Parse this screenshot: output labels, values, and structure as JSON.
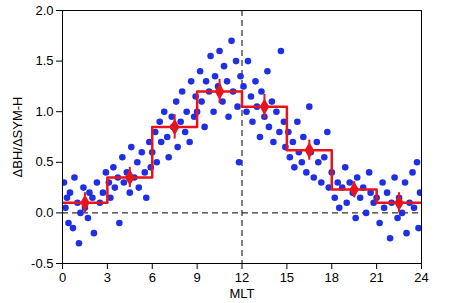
{
  "chart_data": {
    "type": "scatter",
    "x_label": "MLT",
    "y_label": "ΔBH/ΔSYM-H",
    "xlim": [
      0,
      24
    ],
    "xticks": [
      0,
      3,
      6,
      9,
      12,
      15,
      18,
      21,
      24
    ],
    "ylim": [
      -0.5,
      2.0
    ],
    "yticks": [
      -0.5,
      {
        "value": 0,
        "label": "0.0"
      },
      0.5,
      {
        "value": 1,
        "label": "1.0"
      },
      1.5,
      {
        "value": 2,
        "label": "2.0"
      }
    ],
    "grid": false,
    "reference_lines": [
      {
        "axis": "x",
        "value": 12,
        "line_style": "dashed"
      },
      {
        "axis": "y",
        "value": 0,
        "line_style": "dashed"
      }
    ],
    "series": [
      {
        "type": "scatter",
        "color": "#1f2fe6",
        "marker": "circle",
        "x": [
          0.1,
          0.2,
          0.3,
          0.4,
          0.5,
          0.7,
          0.8,
          1.0,
          1.1,
          1.2,
          1.4,
          1.5,
          1.7,
          1.8,
          2.0,
          2.1,
          2.3,
          2.5,
          2.7,
          2.9,
          3.1,
          3.2,
          3.4,
          3.5,
          3.7,
          3.8,
          4.0,
          4.1,
          4.3,
          4.5,
          4.6,
          4.8,
          5.0,
          5.1,
          5.3,
          5.5,
          5.6,
          5.8,
          5.9,
          6.0,
          6.2,
          6.3,
          6.5,
          6.6,
          6.8,
          7.0,
          7.1,
          7.3,
          7.4,
          7.6,
          7.7,
          7.9,
          8.0,
          8.2,
          8.3,
          8.5,
          8.6,
          8.8,
          8.9,
          9.0,
          9.2,
          9.3,
          9.5,
          9.6,
          9.8,
          9.9,
          10.1,
          10.2,
          10.4,
          10.5,
          10.7,
          10.8,
          11.0,
          11.1,
          11.3,
          11.4,
          11.6,
          11.7,
          11.8,
          11.9,
          12.1,
          12.3,
          12.4,
          12.6,
          12.7,
          12.9,
          13.0,
          13.2,
          13.3,
          13.5,
          13.7,
          13.8,
          14.0,
          14.1,
          14.3,
          14.5,
          14.6,
          14.8,
          14.9,
          15.1,
          15.2,
          15.4,
          15.5,
          15.7,
          15.8,
          16.0,
          16.1,
          16.3,
          16.5,
          16.6,
          16.8,
          17.0,
          17.1,
          17.3,
          17.5,
          17.7,
          17.8,
          18.0,
          18.2,
          18.4,
          18.5,
          18.7,
          18.9,
          19.0,
          19.2,
          19.4,
          19.6,
          19.7,
          19.9,
          20.1,
          20.3,
          20.5,
          20.6,
          20.8,
          21.0,
          21.2,
          21.4,
          21.5,
          21.7,
          21.9,
          22.0,
          22.2,
          22.4,
          22.5,
          22.7,
          22.9,
          23.0,
          23.2,
          23.4,
          23.5,
          23.7,
          23.8,
          23.9
        ],
        "values": [
          0.3,
          0.05,
          0.15,
          -0.1,
          0.2,
          -0.15,
          0.35,
          0.1,
          -0.3,
          0,
          0.25,
          0.05,
          -0.05,
          0.2,
          0.15,
          -0.2,
          0.3,
          0.1,
          0.2,
          0.4,
          0.3,
          0.15,
          0.45,
          0.25,
          0.35,
          -0.1,
          0.55,
          0.3,
          0.4,
          0.2,
          0.65,
          0.35,
          0.5,
          0.25,
          0.6,
          0.4,
          0.15,
          0.7,
          0.45,
          0.6,
          0.8,
          0.5,
          0.9,
          0.7,
          1.0,
          0.75,
          0.55,
          0.95,
          0.85,
          1.1,
          0.65,
          0.9,
          1.2,
          0.8,
          1.0,
          0.7,
          1.3,
          0.95,
          1.15,
          1.0,
          1.4,
          1.1,
          0.85,
          1.3,
          1.2,
          1.55,
          1.0,
          1.35,
          1.25,
          1.6,
          1.1,
          1.45,
          1.3,
          0.95,
          1.7,
          1.2,
          1.5,
          1.05,
          0.5,
          1.35,
          1.25,
          1.0,
          1.5,
          1.15,
          0.9,
          1.3,
          1.05,
          0.75,
          1.2,
          0.95,
          1.4,
          0.85,
          1.1,
          0.7,
          1.0,
          0.8,
          1.6,
          0.9,
          0.65,
          0.8,
          0.55,
          0.7,
          0.45,
          0.9,
          0.6,
          0.5,
          0.75,
          0.4,
          1.05,
          0.6,
          0.35,
          0.7,
          0.5,
          0.3,
          0.55,
          0.8,
          0.25,
          0.4,
          0.15,
          0.3,
          0.05,
          0.25,
          0.45,
          0.1,
          0.3,
          0.2,
          -0.05,
          0.35,
          0.15,
          0.25,
          0,
          0.4,
          0.2,
          0.1,
          0.15,
          -0.1,
          0.3,
          0.05,
          0.2,
          -0.25,
          0.1,
          0.35,
          -0.05,
          0.15,
          0,
          0.3,
          -0.2,
          0.1,
          0.4,
          0.05,
          0.5,
          -0.15,
          0.2
        ]
      },
      {
        "type": "step",
        "color": "#e8141c",
        "marker": "diamond",
        "line_style": "solid",
        "bins": [
          0,
          3,
          6,
          9,
          12,
          15,
          18,
          21,
          24
        ],
        "x": [
          1.5,
          4.5,
          7.5,
          10.5,
          13.5,
          16.5,
          19.5,
          22.5
        ],
        "values": [
          0.1,
          0.35,
          0.85,
          1.2,
          1.05,
          0.62,
          0.23,
          0.1
        ],
        "errors": [
          0.1,
          0.1,
          0.12,
          0.12,
          0.12,
          0.1,
          0.08,
          0.1
        ]
      }
    ]
  }
}
